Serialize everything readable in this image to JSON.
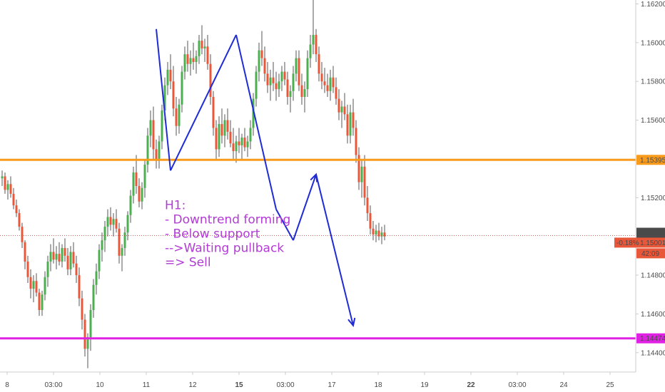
{
  "chart_data": {
    "type": "candlestick",
    "instrument_timeframe": "H1",
    "ylim": [
      1.143,
      1.1622
    ],
    "y_ticks": [
      "1.14400",
      "1.14600",
      "1.14800",
      "1.15200",
      "1.15600",
      "1.15800",
      "1.16000",
      "1.16200"
    ],
    "x_ticks": [
      "8",
      "03:00",
      "10",
      "11",
      "12",
      "15",
      "03:00",
      "17",
      "18",
      "19",
      "22",
      "03:00",
      "24",
      "25"
    ],
    "x_ticks_bold": [
      false,
      false,
      false,
      false,
      false,
      true,
      false,
      false,
      false,
      false,
      true,
      false,
      false,
      false
    ],
    "candles": [
      [
        1.153,
        1.1534,
        1.1526,
        1.1531
      ],
      [
        1.1531,
        1.1533,
        1.1522,
        1.1524
      ],
      [
        1.1524,
        1.1529,
        1.1519,
        1.1527
      ],
      [
        1.1527,
        1.1531,
        1.152,
        1.1522
      ],
      [
        1.1522,
        1.1525,
        1.1514,
        1.1516
      ],
      [
        1.1516,
        1.1519,
        1.151,
        1.1512
      ],
      [
        1.1512,
        1.1514,
        1.1503,
        1.1505
      ],
      [
        1.1505,
        1.1507,
        1.1494,
        1.1497
      ],
      [
        1.1497,
        1.1498,
        1.1483,
        1.1487
      ],
      [
        1.1487,
        1.149,
        1.1476,
        1.1479
      ],
      [
        1.1479,
        1.1483,
        1.1468,
        1.1473
      ],
      [
        1.1473,
        1.148,
        1.1466,
        1.1477
      ],
      [
        1.1477,
        1.1481,
        1.1469,
        1.1471
      ],
      [
        1.1471,
        1.1473,
        1.1459,
        1.1462
      ],
      [
        1.1462,
        1.1472,
        1.1459,
        1.147
      ],
      [
        1.147,
        1.1482,
        1.1467,
        1.1479
      ],
      [
        1.1479,
        1.149,
        1.1474,
        1.1487
      ],
      [
        1.1487,
        1.1496,
        1.1482,
        1.1492
      ],
      [
        1.1492,
        1.1499,
        1.1486,
        1.1488
      ],
      [
        1.1488,
        1.1495,
        1.1483,
        1.1491
      ],
      [
        1.1491,
        1.1497,
        1.1485,
        1.1487
      ],
      [
        1.1487,
        1.1496,
        1.1484,
        1.1494
      ],
      [
        1.1494,
        1.1499,
        1.1487,
        1.149
      ],
      [
        1.149,
        1.1494,
        1.148,
        1.1483
      ],
      [
        1.1483,
        1.1495,
        1.148,
        1.1492
      ],
      [
        1.1492,
        1.1497,
        1.1484,
        1.1486
      ],
      [
        1.1486,
        1.149,
        1.1476,
        1.148
      ],
      [
        1.148,
        1.1484,
        1.1464,
        1.1468
      ],
      [
        1.1468,
        1.1472,
        1.1452,
        1.1457
      ],
      [
        1.1457,
        1.146,
        1.1438,
        1.1442
      ],
      [
        1.1442,
        1.145,
        1.1432,
        1.1448
      ],
      [
        1.1448,
        1.1465,
        1.1441,
        1.1462
      ],
      [
        1.1462,
        1.1478,
        1.1458,
        1.1475
      ],
      [
        1.1475,
        1.1486,
        1.147,
        1.1482
      ],
      [
        1.1482,
        1.1496,
        1.1478,
        1.1493
      ],
      [
        1.1493,
        1.1502,
        1.1487,
        1.1498
      ],
      [
        1.1498,
        1.1508,
        1.1492,
        1.1505
      ],
      [
        1.1505,
        1.1514,
        1.15,
        1.151
      ],
      [
        1.151,
        1.1515,
        1.1503,
        1.1506
      ],
      [
        1.1506,
        1.1512,
        1.15,
        1.1509
      ],
      [
        1.1509,
        1.1514,
        1.1502,
        1.1504
      ],
      [
        1.1504,
        1.1507,
        1.1486,
        1.149
      ],
      [
        1.149,
        1.1496,
        1.1482,
        1.1494
      ],
      [
        1.1494,
        1.1505,
        1.149,
        1.1502
      ],
      [
        1.1502,
        1.1513,
        1.1498,
        1.1511
      ],
      [
        1.1511,
        1.1524,
        1.1507,
        1.1521
      ],
      [
        1.1521,
        1.1536,
        1.1517,
        1.1533
      ],
      [
        1.1533,
        1.1542,
        1.1522,
        1.1526
      ],
      [
        1.1526,
        1.153,
        1.1515,
        1.1518
      ],
      [
        1.1518,
        1.1528,
        1.1514,
        1.1525
      ],
      [
        1.1525,
        1.154,
        1.152,
        1.1537
      ],
      [
        1.1537,
        1.1556,
        1.1533,
        1.1552
      ],
      [
        1.1552,
        1.1565,
        1.1546,
        1.156
      ],
      [
        1.156,
        1.1567,
        1.154,
        1.1545
      ],
      [
        1.1545,
        1.155,
        1.1535,
        1.1539
      ],
      [
        1.1539,
        1.1552,
        1.1535,
        1.1549
      ],
      [
        1.1549,
        1.1568,
        1.1545,
        1.1565
      ],
      [
        1.1565,
        1.1582,
        1.156,
        1.1578
      ],
      [
        1.1578,
        1.159,
        1.1573,
        1.1586
      ],
      [
        1.1586,
        1.1594,
        1.1576,
        1.158
      ],
      [
        1.158,
        1.1588,
        1.1562,
        1.1566
      ],
      [
        1.1566,
        1.1572,
        1.1552,
        1.1557
      ],
      [
        1.1557,
        1.1571,
        1.1553,
        1.1568
      ],
      [
        1.1568,
        1.1588,
        1.1564,
        1.1585
      ],
      [
        1.1585,
        1.1598,
        1.1581,
        1.1594
      ],
      [
        1.1594,
        1.1601,
        1.1585,
        1.1589
      ],
      [
        1.1589,
        1.1596,
        1.1583,
        1.1592
      ],
      [
        1.1592,
        1.16,
        1.1586,
        1.159
      ],
      [
        1.159,
        1.1596,
        1.1584,
        1.1593
      ],
      [
        1.1593,
        1.1604,
        1.1589,
        1.1601
      ],
      [
        1.1601,
        1.1609,
        1.1594,
        1.1597
      ],
      [
        1.1597,
        1.1602,
        1.159,
        1.1598
      ],
      [
        1.1598,
        1.1604,
        1.1586,
        1.1589
      ],
      [
        1.1589,
        1.1594,
        1.1568,
        1.1572
      ],
      [
        1.1572,
        1.1575,
        1.1552,
        1.1556
      ],
      [
        1.1556,
        1.156,
        1.154,
        1.1545
      ],
      [
        1.1545,
        1.1562,
        1.1541,
        1.1558
      ],
      [
        1.1558,
        1.1566,
        1.1548,
        1.1552
      ],
      [
        1.1552,
        1.1563,
        1.1546,
        1.156
      ],
      [
        1.156,
        1.1566,
        1.155,
        1.1554
      ],
      [
        1.1554,
        1.156,
        1.1546,
        1.1548
      ],
      [
        1.1548,
        1.1556,
        1.154,
        1.1544
      ],
      [
        1.1544,
        1.1552,
        1.1538,
        1.1549
      ],
      [
        1.1549,
        1.1556,
        1.1543,
        1.1547
      ],
      [
        1.1547,
        1.1553,
        1.154,
        1.1551
      ],
      [
        1.1551,
        1.1556,
        1.1544,
        1.1546
      ],
      [
        1.1546,
        1.1552,
        1.1541,
        1.1549
      ],
      [
        1.1549,
        1.156,
        1.1545,
        1.1556
      ],
      [
        1.1556,
        1.1574,
        1.1552,
        1.1571
      ],
      [
        1.1571,
        1.1588,
        1.1567,
        1.1585
      ],
      [
        1.1585,
        1.16,
        1.158,
        1.1596
      ],
      [
        1.1596,
        1.1606,
        1.1588,
        1.1592
      ],
      [
        1.1592,
        1.1598,
        1.158,
        1.1584
      ],
      [
        1.1584,
        1.159,
        1.1574,
        1.1578
      ],
      [
        1.1578,
        1.1586,
        1.157,
        1.1582
      ],
      [
        1.1582,
        1.159,
        1.1575,
        1.1579
      ],
      [
        1.1579,
        1.1585,
        1.157,
        1.1576
      ],
      [
        1.1576,
        1.1584,
        1.1572,
        1.158
      ],
      [
        1.158,
        1.1588,
        1.1575,
        1.1585
      ],
      [
        1.1585,
        1.159,
        1.1578,
        1.1581
      ],
      [
        1.1581,
        1.1585,
        1.1568,
        1.1572
      ],
      [
        1.1572,
        1.1578,
        1.1564,
        1.1575
      ],
      [
        1.1575,
        1.1588,
        1.157,
        1.1584
      ],
      [
        1.1584,
        1.1596,
        1.158,
        1.1592
      ],
      [
        1.1592,
        1.1596,
        1.1575,
        1.1578
      ],
      [
        1.1578,
        1.1584,
        1.1568,
        1.1572
      ],
      [
        1.1572,
        1.158,
        1.1564,
        1.1576
      ],
      [
        1.1576,
        1.1596,
        1.1572,
        1.1592
      ],
      [
        1.1592,
        1.1604,
        1.1587,
        1.1599
      ],
      [
        1.1599,
        1.1622,
        1.1594,
        1.1604
      ],
      [
        1.1604,
        1.1607,
        1.159,
        1.1594
      ],
      [
        1.1594,
        1.1598,
        1.158,
        1.1584
      ],
      [
        1.1584,
        1.159,
        1.1576,
        1.158
      ],
      [
        1.158,
        1.1587,
        1.1574,
        1.1578
      ],
      [
        1.1578,
        1.1584,
        1.1572,
        1.1575
      ],
      [
        1.1575,
        1.1586,
        1.157,
        1.1582
      ],
      [
        1.1582,
        1.1588,
        1.1574,
        1.1577
      ],
      [
        1.1577,
        1.1582,
        1.1568,
        1.1571
      ],
      [
        1.1571,
        1.1576,
        1.156,
        1.1564
      ],
      [
        1.1564,
        1.157,
        1.1556,
        1.1567
      ],
      [
        1.1567,
        1.1574,
        1.156,
        1.1563
      ],
      [
        1.1563,
        1.1568,
        1.1548,
        1.1552
      ],
      [
        1.1552,
        1.1568,
        1.1548,
        1.1564
      ],
      [
        1.1564,
        1.1571,
        1.1552,
        1.1556
      ],
      [
        1.1556,
        1.156,
        1.1538,
        1.1542
      ],
      [
        1.1542,
        1.1546,
        1.1524,
        1.1528
      ],
      [
        1.1528,
        1.154,
        1.152,
        1.1536
      ],
      [
        1.1536,
        1.1542,
        1.1516,
        1.152
      ],
      [
        1.152,
        1.1526,
        1.1508,
        1.1512
      ],
      [
        1.1512,
        1.1516,
        1.1501,
        1.1504
      ],
      [
        1.1504,
        1.1508,
        1.1498,
        1.1501
      ],
      [
        1.1501,
        1.1506,
        1.1497,
        1.1503
      ],
      [
        1.1503,
        1.1507,
        1.1498,
        1.15
      ],
      [
        1.15,
        1.1505,
        1.1496,
        1.1502
      ],
      [
        1.1502,
        1.1506,
        1.1498,
        1.15
      ]
    ],
    "horizontal_lines": [
      {
        "value": 1.15395,
        "label": "1.15395",
        "color": "#f89b1c"
      },
      {
        "value": 1.14474,
        "label": "1.14474",
        "color": "#e020e3"
      }
    ],
    "current_price": {
      "value": 1.15004,
      "label": "1.15004",
      "color": "#4a4a4a",
      "line_color": "#c0392b"
    },
    "last_price": {
      "value": 1.15001,
      "label": "1.15001",
      "change_label": "-0.18%",
      "countdown": "42:09",
      "color": "#e8573a"
    },
    "pattern_path": [
      [
        1.1607,
        54
      ],
      [
        1.1534,
        59
      ],
      [
        1.1604,
        82
      ],
      [
        1.1514,
        96
      ],
      [
        1.1498,
        102
      ],
      [
        1.1532,
        110
      ],
      [
        1.1454,
        123
      ]
    ],
    "annotation": {
      "lines": [
        "H1:",
        "- Downtrend forming",
        "- Below support",
        "-->Waiting pullback",
        "=> Sell"
      ],
      "color": "#b23bd6",
      "anchor": [
        1.1514,
        57
      ]
    },
    "colors": {
      "up": "#4caf50",
      "down": "#e8573a",
      "wick": "#555555",
      "pattern": "#1f2bd6",
      "grid_axis": "#cccccc"
    }
  }
}
